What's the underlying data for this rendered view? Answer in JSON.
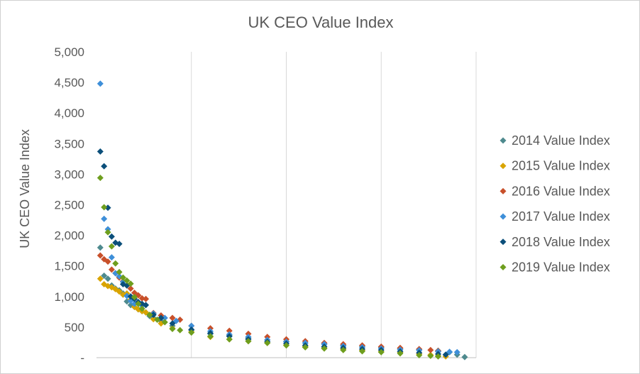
{
  "chart_data": {
    "type": "scatter",
    "title": "UK CEO Value Index",
    "xlabel": "",
    "ylabel": "UK CEO Value Index",
    "ylim": [
      0,
      5000
    ],
    "yticks": [
      0,
      500,
      1000,
      1500,
      2000,
      2500,
      3000,
      3500,
      4000,
      4500,
      5000
    ],
    "ytick_labels": [
      "-",
      "500",
      "1,000",
      "1,500",
      "2,000",
      "2,500",
      "3,000",
      "3,500",
      "4,000",
      "4,500",
      "5,000"
    ],
    "xlim": [
      0,
      100
    ],
    "grid": "vertical",
    "legend_position": "right",
    "series": [
      {
        "name": "2014 Value Index",
        "color": "#4e8a8e",
        "x": [
          1,
          2,
          3,
          4,
          5,
          6,
          7,
          8,
          9,
          10,
          11,
          12,
          13,
          14,
          15,
          17,
          20,
          25,
          30,
          35,
          40,
          45,
          50,
          55,
          60,
          65,
          70,
          75,
          80,
          85,
          90,
          93,
          95,
          97
        ],
        "y": [
          1800,
          1340,
          1290,
          1180,
          1130,
          1100,
          1050,
          920,
          860,
          830,
          790,
          760,
          740,
          680,
          650,
          600,
          520,
          450,
          390,
          360,
          320,
          290,
          265,
          240,
          220,
          200,
          185,
          165,
          150,
          130,
          115,
          90,
          50,
          10
        ]
      },
      {
        "name": "2015 Value Index",
        "color": "#d9a400",
        "x": [
          1,
          2,
          3,
          4,
          5,
          6,
          7,
          8,
          9,
          10,
          11,
          12,
          13,
          15,
          17,
          20,
          25,
          30,
          35,
          40,
          45,
          50,
          55,
          60,
          65,
          70,
          75,
          80,
          85,
          88,
          90,
          92
        ],
        "y": [
          1290,
          1200,
          1170,
          1150,
          1120,
          1080,
          1030,
          1050,
          950,
          830,
          790,
          760,
          740,
          630,
          560,
          480,
          420,
          340,
          300,
          270,
          240,
          205,
          180,
          160,
          140,
          120,
          100,
          85,
          60,
          45,
          30,
          20
        ]
      },
      {
        "name": "2016 Value Index",
        "color": "#c8502a",
        "x": [
          1,
          2,
          3,
          4,
          5,
          6,
          7,
          8,
          9,
          10,
          11,
          12,
          13,
          15,
          17,
          20,
          22,
          25,
          30,
          35,
          40,
          45,
          50,
          55,
          60,
          65,
          70,
          75,
          80,
          85,
          88,
          90
        ],
        "y": [
          1670,
          1610,
          1570,
          1440,
          1380,
          1310,
          1250,
          1180,
          1130,
          1060,
          1020,
          970,
          960,
          730,
          690,
          650,
          620,
          520,
          480,
          440,
          390,
          340,
          300,
          270,
          240,
          220,
          200,
          180,
          160,
          140,
          125,
          110
        ]
      },
      {
        "name": "2017 Value Index",
        "color": "#3e8fd9",
        "x": [
          1,
          2,
          3,
          4,
          5,
          6,
          7,
          8,
          9,
          10,
          12,
          15,
          18,
          21,
          25,
          30,
          35,
          40,
          45,
          50,
          55,
          60,
          65,
          70,
          75,
          80,
          85,
          90,
          93,
          95
        ],
        "y": [
          4480,
          2270,
          2100,
          1640,
          1380,
          1330,
          1240,
          1010,
          930,
          880,
          850,
          720,
          650,
          600,
          520,
          430,
          380,
          340,
          290,
          260,
          240,
          220,
          190,
          170,
          150,
          130,
          120,
          100,
          95,
          90
        ]
      },
      {
        "name": "2018 Value Index",
        "color": "#0b4f7a",
        "x": [
          1,
          2,
          3,
          4,
          5,
          6,
          7,
          8,
          9,
          10,
          11,
          12,
          13,
          15,
          17,
          20,
          25,
          30,
          35,
          40,
          45,
          50,
          55,
          60,
          65,
          70,
          75,
          80,
          85,
          90,
          92
        ],
        "y": [
          3370,
          3130,
          2450,
          1980,
          1880,
          1860,
          1200,
          1180,
          1000,
          960,
          910,
          880,
          860,
          700,
          650,
          560,
          460,
          400,
          350,
          300,
          260,
          230,
          200,
          180,
          160,
          140,
          125,
          100,
          80,
          60,
          50
        ]
      },
      {
        "name": "2019 Value Index",
        "color": "#6e9e1e",
        "x": [
          1,
          2,
          3,
          4,
          5,
          6,
          7,
          8,
          9,
          10,
          11,
          12,
          14,
          16,
          18,
          20,
          22,
          25,
          30,
          35,
          40,
          45,
          50,
          55,
          60,
          65,
          70,
          75,
          80,
          85,
          88,
          90
        ],
        "y": [
          2940,
          2460,
          2050,
          1820,
          1540,
          1400,
          1310,
          1260,
          1210,
          990,
          880,
          800,
          700,
          620,
          580,
          470,
          450,
          410,
          350,
          300,
          270,
          240,
          200,
          170,
          150,
          125,
          105,
          90,
          70,
          40,
          30,
          20
        ]
      }
    ]
  }
}
